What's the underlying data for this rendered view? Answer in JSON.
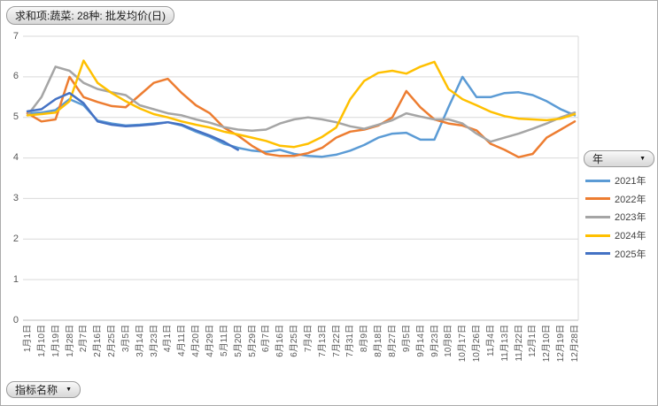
{
  "pivot_fields": {
    "value_button": "求和项:蔬菜: 28种: 批发均价(日)",
    "legend_button": "年",
    "axis_button": "指标名称"
  },
  "chart_data": {
    "type": "line",
    "title": "",
    "legend_position": "right",
    "grid": true,
    "ylim": [
      0,
      7
    ],
    "yticks": [
      0,
      1,
      2,
      3,
      4,
      5,
      6,
      7
    ],
    "categories": [
      "1月1日",
      "1月10日",
      "1月19日",
      "1月28日",
      "2月7日",
      "2月16日",
      "2月25日",
      "3月5日",
      "3月14日",
      "3月23日",
      "4月1日",
      "4月11日",
      "4月20日",
      "4月29日",
      "5月11日",
      "5月20日",
      "5月29日",
      "6月7日",
      "6月16日",
      "6月25日",
      "7月4日",
      "7月13日",
      "7月22日",
      "7月31日",
      "8月9日",
      "8月18日",
      "8月27日",
      "9月5日",
      "9月14日",
      "9月23日",
      "10月8日",
      "10月17日",
      "10月26日",
      "11月4日",
      "11月13日",
      "11月22日",
      "12月1日",
      "12月10日",
      "12月19日",
      "12月28日"
    ],
    "series": [
      {
        "name": "2021年",
        "color": "#5B9BD5",
        "values": [
          5.1,
          5.12,
          5.18,
          5.45,
          5.3,
          4.92,
          4.85,
          4.8,
          4.82,
          4.85,
          4.88,
          4.8,
          4.65,
          4.52,
          4.35,
          4.25,
          4.18,
          4.15,
          4.2,
          4.1,
          4.05,
          4.03,
          4.08,
          4.18,
          4.32,
          4.5,
          4.6,
          4.62,
          4.45,
          4.45,
          5.25,
          6.0,
          5.5,
          5.5,
          5.6,
          5.62,
          5.55,
          5.4,
          5.2,
          5.05
        ]
      },
      {
        "name": "2022年",
        "color": "#ED7D31",
        "values": [
          5.1,
          4.9,
          4.95,
          6.0,
          5.5,
          5.38,
          5.28,
          5.25,
          5.55,
          5.85,
          5.95,
          5.6,
          5.3,
          5.1,
          4.75,
          4.55,
          4.3,
          4.1,
          4.05,
          4.05,
          4.12,
          4.25,
          4.5,
          4.65,
          4.7,
          4.8,
          5.0,
          5.65,
          5.25,
          4.95,
          4.85,
          4.8,
          4.68,
          4.35,
          4.2,
          4.02,
          4.1,
          4.5,
          4.7,
          4.9
        ]
      },
      {
        "name": "2023年",
        "color": "#A5A5A5",
        "values": [
          5.05,
          5.5,
          6.25,
          6.15,
          5.85,
          5.7,
          5.62,
          5.55,
          5.3,
          5.2,
          5.1,
          5.05,
          4.95,
          4.87,
          4.76,
          4.7,
          4.67,
          4.7,
          4.85,
          4.95,
          5.0,
          4.95,
          4.88,
          4.78,
          4.72,
          4.82,
          4.93,
          5.1,
          5.02,
          4.95,
          4.95,
          4.85,
          4.6,
          4.4,
          4.5,
          4.6,
          4.72,
          4.85,
          5.0,
          5.12
        ]
      },
      {
        "name": "2024年",
        "color": "#FFC000",
        "values": [
          5.05,
          5.08,
          5.12,
          5.4,
          6.4,
          5.85,
          5.6,
          5.4,
          5.22,
          5.08,
          5.0,
          4.9,
          4.82,
          4.75,
          4.65,
          4.58,
          4.5,
          4.42,
          4.3,
          4.27,
          4.35,
          4.52,
          4.75,
          5.45,
          5.9,
          6.1,
          6.15,
          6.08,
          6.25,
          6.37,
          5.7,
          5.45,
          5.3,
          5.14,
          5.03,
          4.97,
          4.95,
          4.93,
          4.97,
          5.08
        ]
      },
      {
        "name": "2025年",
        "color": "#4472C4",
        "values": [
          5.15,
          5.2,
          5.45,
          5.6,
          5.35,
          4.9,
          4.82,
          4.78,
          4.8,
          4.83,
          4.88,
          4.82,
          4.68,
          4.55,
          4.4,
          4.2,
          null,
          null,
          null,
          null,
          null,
          null,
          null,
          null,
          null,
          null,
          null,
          null,
          null,
          null,
          null,
          null,
          null,
          null,
          null,
          null,
          null,
          null,
          null,
          null
        ]
      }
    ]
  }
}
